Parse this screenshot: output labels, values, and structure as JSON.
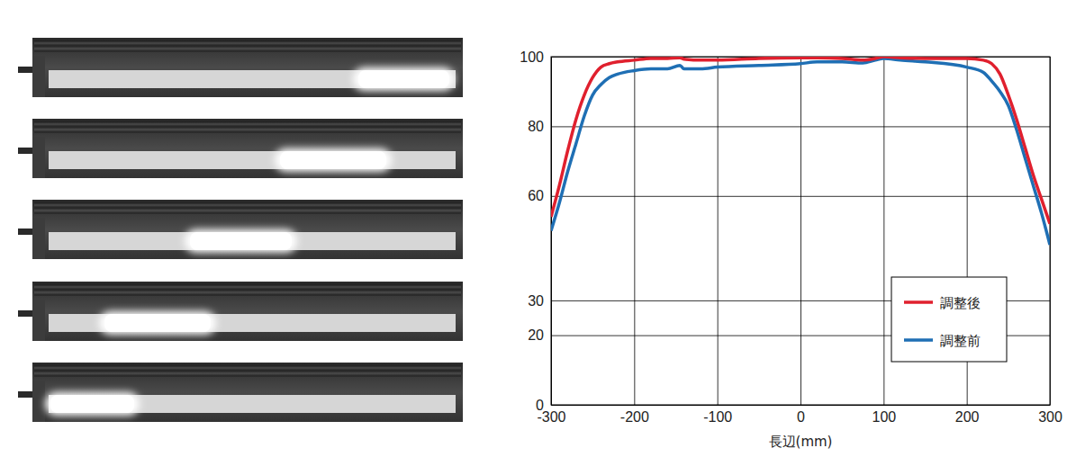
{
  "chart_data": {
    "type": "line",
    "x": [
      -300,
      -290,
      -280,
      -270,
      -260,
      -250,
      -240,
      -230,
      -220,
      -200,
      -180,
      -160,
      -145,
      -140,
      -120,
      -100,
      -50,
      0,
      20,
      50,
      75,
      90,
      100,
      120,
      150,
      200,
      220,
      230,
      240,
      250,
      260,
      270,
      280,
      290,
      300
    ],
    "series": [
      {
        "name": "調整後",
        "color": "#e0202e",
        "values": [
          54,
          63,
          73,
          82,
          89,
          94,
          97,
          98,
          98.5,
          99,
          99.5,
          99.5,
          99.7,
          99.3,
          99,
          99,
          99.5,
          99.7,
          99.7,
          99.5,
          99,
          99.5,
          100,
          99.7,
          99.5,
          99.5,
          99,
          98,
          95,
          89,
          82,
          74,
          66,
          59,
          52
        ]
      },
      {
        "name": "調整前",
        "color": "#1f6fb4",
        "values": [
          50,
          58,
          67,
          75,
          83,
          89,
          92,
          94,
          95,
          96,
          96.5,
          96.5,
          97.5,
          96.5,
          96.5,
          97,
          97.5,
          98,
          98.5,
          98.5,
          98.2,
          99,
          99.5,
          99,
          98.5,
          97,
          95.5,
          93,
          90,
          86,
          79,
          71,
          63,
          55,
          46
        ]
      }
    ],
    "xlabel": "長辺(mm)",
    "xlim": [
      -300,
      300
    ],
    "xticks": [
      -300,
      -200,
      -100,
      0,
      100,
      200,
      300
    ],
    "ylim": [
      0,
      100
    ],
    "yticks": [
      0,
      20,
      30,
      60,
      80,
      100
    ],
    "grid": true,
    "legend": "lower right"
  }
}
